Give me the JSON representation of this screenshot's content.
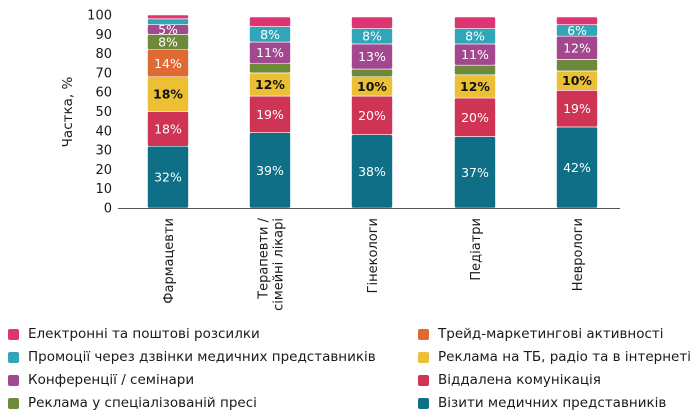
{
  "chart_data": {
    "type": "bar",
    "stacked": true,
    "title": "",
    "xlabel": "",
    "ylabel": "Частка, %",
    "ylim": [
      0,
      100
    ],
    "yticks": [
      0,
      10,
      20,
      30,
      40,
      50,
      60,
      70,
      80,
      90,
      100
    ],
    "grid": false,
    "legend_position": "bottom",
    "categories": [
      "Фармацевти",
      "Терапевти / сімейні лікарі",
      "Гінекологи",
      "Педіатри",
      "Неврологи"
    ],
    "category_lines": [
      [
        "Фармацевти"
      ],
      [
        "Терапевти /",
        "сімейні лікарі"
      ],
      [
        "Гінекологи"
      ],
      [
        "Педіатри"
      ],
      [
        "Неврологи"
      ]
    ],
    "series": [
      {
        "name": "Візити медичних представників",
        "color": "#0e6f86",
        "label_color": "#ffffff",
        "values": [
          32,
          39,
          38,
          37,
          42
        ],
        "labels": [
          "32%",
          "39%",
          "38%",
          "37%",
          "42%"
        ]
      },
      {
        "name": "Віддалена комунікація",
        "color": "#cf3454",
        "label_color": "#ffffff",
        "values": [
          18,
          19,
          20,
          20,
          19
        ],
        "labels": [
          "18%",
          "19%",
          "20%",
          "20%",
          "19%"
        ]
      },
      {
        "name": "Реклама на ТБ, радіо та в інтернеті",
        "color": "#ecbf34",
        "label_color": "#111111",
        "values": [
          18,
          12,
          10,
          12,
          10
        ],
        "labels": [
          "18%",
          "12%",
          "10%",
          "12%",
          "10%"
        ]
      },
      {
        "name": "Трейд-маркетингові активності",
        "color": "#de6a34",
        "label_color": "#ffffff",
        "values": [
          14,
          0,
          0,
          0,
          0
        ],
        "labels": [
          "14%",
          "",
          "",
          "",
          ""
        ]
      },
      {
        "name": "Реклама у спеціалізованій пресі",
        "color": "#6d8a3a",
        "label_color": "#ffffff",
        "values": [
          8,
          5,
          4,
          5,
          6
        ],
        "labels": [
          "8%",
          "",
          "",
          "",
          ""
        ]
      },
      {
        "name": "Конференції / семінари",
        "color": "#a3478f",
        "label_color": "#ffffff",
        "values": [
          5,
          11,
          13,
          11,
          12
        ],
        "labels": [
          "5%",
          "11%",
          "13%",
          "11%",
          "12%"
        ]
      },
      {
        "name": "Промоції через дзвінки медичних представників",
        "color": "#31a6b8",
        "label_color": "#ffffff",
        "values": [
          3,
          8,
          8,
          8,
          6
        ],
        "labels": [
          "",
          "8%",
          "8%",
          "8%",
          "6%"
        ]
      },
      {
        "name": "Електронні та поштові розсилки",
        "color": "#dd3472",
        "label_color": "#ffffff",
        "values": [
          2,
          5,
          6,
          6,
          4
        ],
        "labels": [
          "",
          "",
          "",
          "",
          ""
        ]
      }
    ]
  },
  "legend": {
    "left": [
      {
        "label": "Електронні та поштові розсилки",
        "color": "#dd3472"
      },
      {
        "label": "Промоції через дзвінки медичних представників",
        "color": "#31a6b8"
      },
      {
        "label": "Конференції / семінари",
        "color": "#a3478f"
      },
      {
        "label": "Реклама у спеціалізованій пресі",
        "color": "#6d8a3a"
      }
    ],
    "right": [
      {
        "label": "Трейд-маркетингові активності",
        "color": "#de6a34"
      },
      {
        "label": "Реклама на ТБ, радіо та в інтернеті",
        "color": "#ecbf34"
      },
      {
        "label": "Віддалена комунікація",
        "color": "#cf3454"
      },
      {
        "label": "Візити медичних представників",
        "color": "#0e6f86"
      }
    ]
  }
}
